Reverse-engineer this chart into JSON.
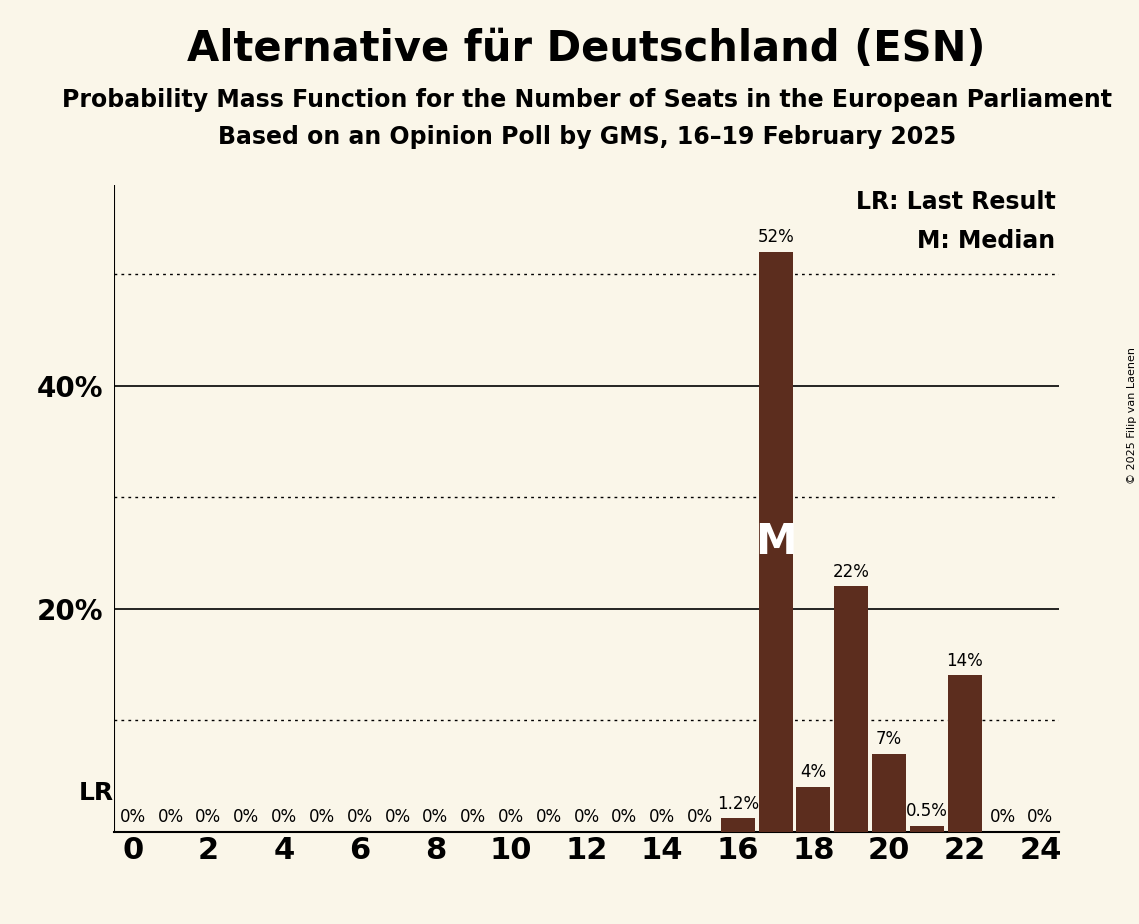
{
  "title": "Alternative für Deutschland (ESN)",
  "subtitle1": "Probability Mass Function for the Number of Seats in the European Parliament",
  "subtitle2": "Based on an Opinion Poll by GMS, 16–19 February 2025",
  "copyright": "© 2025 Filip van Laenen",
  "background_color": "#FAF6E9",
  "bar_color": "#5C2D1E",
  "seats": [
    0,
    1,
    2,
    3,
    4,
    5,
    6,
    7,
    8,
    9,
    10,
    11,
    12,
    13,
    14,
    15,
    16,
    17,
    18,
    19,
    20,
    21,
    22,
    23,
    24
  ],
  "probabilities": [
    0,
    0,
    0,
    0,
    0,
    0,
    0,
    0,
    0,
    0,
    0,
    0,
    0,
    0,
    0,
    0,
    1.2,
    52,
    4,
    22,
    7,
    0.5,
    14,
    0,
    0
  ],
  "median": 17,
  "last_result_x": 0,
  "xlim": [
    -0.5,
    24.5
  ],
  "ylim": [
    0,
    58
  ],
  "solid_yticks": [
    20,
    40
  ],
  "dotted_yticks": [
    10,
    30,
    50
  ],
  "title_fontsize": 30,
  "subtitle_fontsize": 17,
  "bar_label_fontsize": 12,
  "ytick_label_fontsize": 20,
  "xtick_fontsize": 22,
  "legend_fontsize": 17,
  "median_fontsize": 30,
  "lr_fontsize": 18
}
